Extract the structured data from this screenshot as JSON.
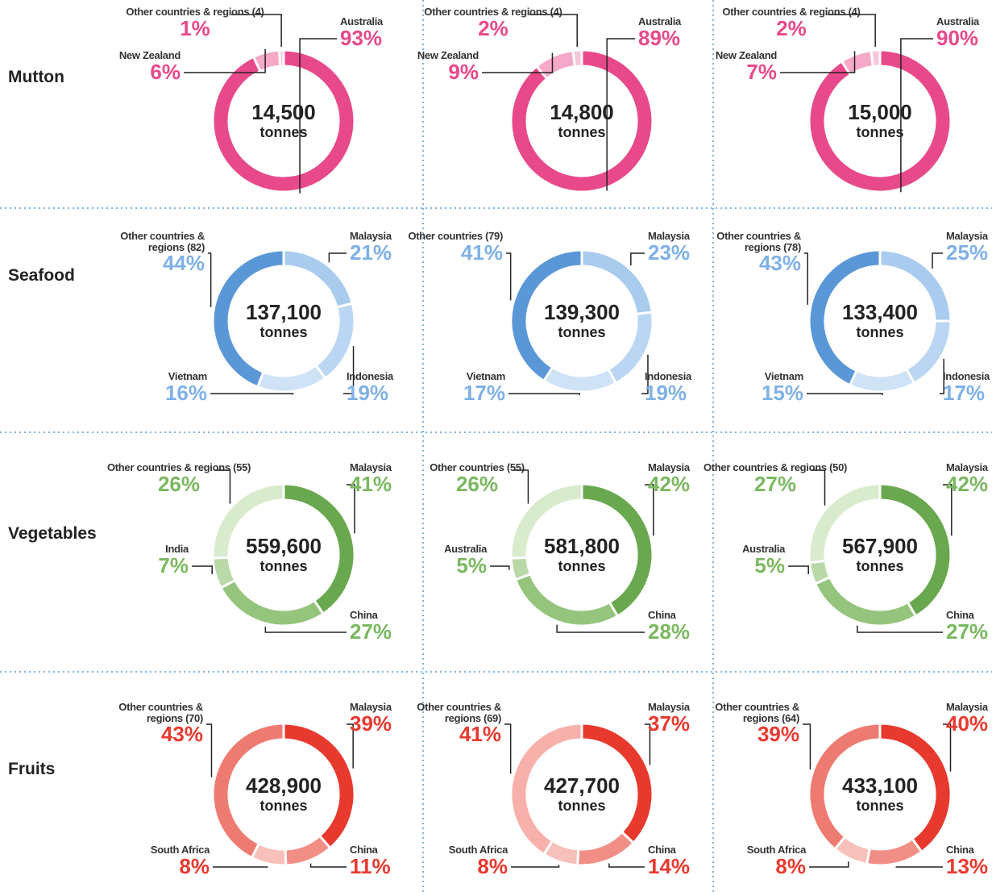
{
  "rows": [
    "Mutton",
    "Seafood",
    "Vegetables",
    "Fruits"
  ],
  "chart_data": [
    {
      "type": "pie",
      "categories": [
        "Australia",
        "New Zealand",
        "Other countries & regions (4)"
      ],
      "values": [
        93,
        6,
        1
      ],
      "value_labels": [
        "93%",
        "6%",
        "1%"
      ],
      "colors": [
        "#e8498a",
        "#f5a8c8",
        "#f8c6da"
      ],
      "label_color": "#e8498a",
      "total": 14500,
      "total_label": "14,500",
      "unit": "tonnes"
    },
    {
      "type": "pie",
      "categories": [
        "Australia",
        "New Zealand",
        "Other countries & regions (4)"
      ],
      "values": [
        89,
        9,
        2
      ],
      "value_labels": [
        "89%",
        "9%",
        "2%"
      ],
      "colors": [
        "#e8498a",
        "#f5a8c8",
        "#f8c6da"
      ],
      "label_color": "#e8498a",
      "total": 14800,
      "total_label": "14,800",
      "unit": "tonnes"
    },
    {
      "type": "pie",
      "categories": [
        "Australia",
        "New Zealand",
        "Other countries & regions (4)"
      ],
      "values": [
        90,
        7,
        2
      ],
      "value_labels": [
        "90%",
        "7%",
        "2%"
      ],
      "colors": [
        "#e8498a",
        "#f5a8c8",
        "#f8c6da"
      ],
      "label_color": "#e8498a",
      "total": 15000,
      "total_label": "15,000",
      "unit": "tonnes"
    },
    {
      "type": "pie",
      "categories": [
        "Malaysia",
        "Indonesia",
        "Vietnam",
        "Other countries & regions (82)"
      ],
      "values": [
        21,
        19,
        16,
        44
      ],
      "value_labels": [
        "21%",
        "19%",
        "16%",
        "44%"
      ],
      "colors": [
        "#a9cbee",
        "#bad6f2",
        "#cfe2f6",
        "#5a97d6"
      ],
      "label_color": "#7fb0e6",
      "total": 137100,
      "total_label": "137,100",
      "unit": "tonnes"
    },
    {
      "type": "pie",
      "categories": [
        "Malaysia",
        "Indonesia",
        "Vietnam",
        "Other countries (79)"
      ],
      "values": [
        23,
        19,
        17,
        41
      ],
      "value_labels": [
        "23%",
        "19%",
        "17%",
        "41%"
      ],
      "colors": [
        "#a9cbee",
        "#bad6f2",
        "#cfe2f6",
        "#5a97d6"
      ],
      "label_color": "#7fb0e6",
      "total": 139300,
      "total_label": "139,300",
      "unit": "tonnes"
    },
    {
      "type": "pie",
      "categories": [
        "Malaysia",
        "Indonesia",
        "Vietnam",
        "Other countries & regions (78)"
      ],
      "values": [
        25,
        17,
        15,
        43
      ],
      "value_labels": [
        "25%",
        "17%",
        "15%",
        "43%"
      ],
      "colors": [
        "#a9cbee",
        "#bad6f2",
        "#cfe2f6",
        "#5a97d6"
      ],
      "label_color": "#7fb0e6",
      "total": 133400,
      "total_label": "133,400",
      "unit": "tonnes"
    },
    {
      "type": "pie",
      "categories": [
        "Malaysia",
        "China",
        "India",
        "Other countries & regions (55)"
      ],
      "values": [
        41,
        27,
        7,
        26
      ],
      "value_labels": [
        "41%",
        "27%",
        "7%",
        "26%"
      ],
      "colors": [
        "#6aa84f",
        "#95c47d",
        "#b9d9a8",
        "#d9ebcd"
      ],
      "label_color": "#7ab85f",
      "total": 559600,
      "total_label": "559,600",
      "unit": "tonnes"
    },
    {
      "type": "pie",
      "categories": [
        "Malaysia",
        "China",
        "Australia",
        "Other countries (55)"
      ],
      "values": [
        42,
        28,
        5,
        26
      ],
      "value_labels": [
        "42%",
        "28%",
        "5%",
        "26%"
      ],
      "colors": [
        "#6aa84f",
        "#95c47d",
        "#b9d9a8",
        "#d9ebcd"
      ],
      "label_color": "#7ab85f",
      "total": 581800,
      "total_label": "581,800",
      "unit": "tonnes"
    },
    {
      "type": "pie",
      "categories": [
        "Malaysia",
        "China",
        "Australia",
        "Other countries & regions (50)"
      ],
      "values": [
        42,
        27,
        5,
        27
      ],
      "value_labels": [
        "42%",
        "27%",
        "5%",
        "27%"
      ],
      "colors": [
        "#6aa84f",
        "#95c47d",
        "#b9d9a8",
        "#d9ebcd"
      ],
      "label_color": "#7ab85f",
      "total": 567900,
      "total_label": "567,900",
      "unit": "tonnes"
    },
    {
      "type": "pie",
      "categories": [
        "Malaysia",
        "China",
        "South Africa",
        "Other countries & regions (70)"
      ],
      "values": [
        39,
        11,
        8,
        43
      ],
      "value_labels": [
        "39%",
        "11%",
        "8%",
        "43%"
      ],
      "colors": [
        "#e8392f",
        "#f18f86",
        "#f7c0ba",
        "#ee7b72"
      ],
      "label_color": "#e8392f",
      "total": 428900,
      "total_label": "428,900",
      "unit": "tonnes"
    },
    {
      "type": "pie",
      "categories": [
        "Malaysia",
        "China",
        "South Africa",
        "Other countries & regions (69)"
      ],
      "values": [
        37,
        14,
        8,
        41
      ],
      "value_labels": [
        "37%",
        "14%",
        "8%",
        "41%"
      ],
      "colors": [
        "#e8392f",
        "#f18f86",
        "#f7c0ba",
        "#f7b0aa"
      ],
      "label_color": "#e8392f",
      "total": 427700,
      "total_label": "427,700",
      "unit": "tonnes"
    },
    {
      "type": "pie",
      "categories": [
        "Malaysia",
        "China",
        "South Africa",
        "Other countries & regions (64)"
      ],
      "values": [
        40,
        13,
        8,
        39
      ],
      "value_labels": [
        "40%",
        "13%",
        "8%",
        "39%"
      ],
      "colors": [
        "#e8392f",
        "#f18f86",
        "#f7c0ba",
        "#ee7b72"
      ],
      "label_color": "#e8392f",
      "total": 433100,
      "total_label": "433,100",
      "unit": "tonnes"
    }
  ]
}
